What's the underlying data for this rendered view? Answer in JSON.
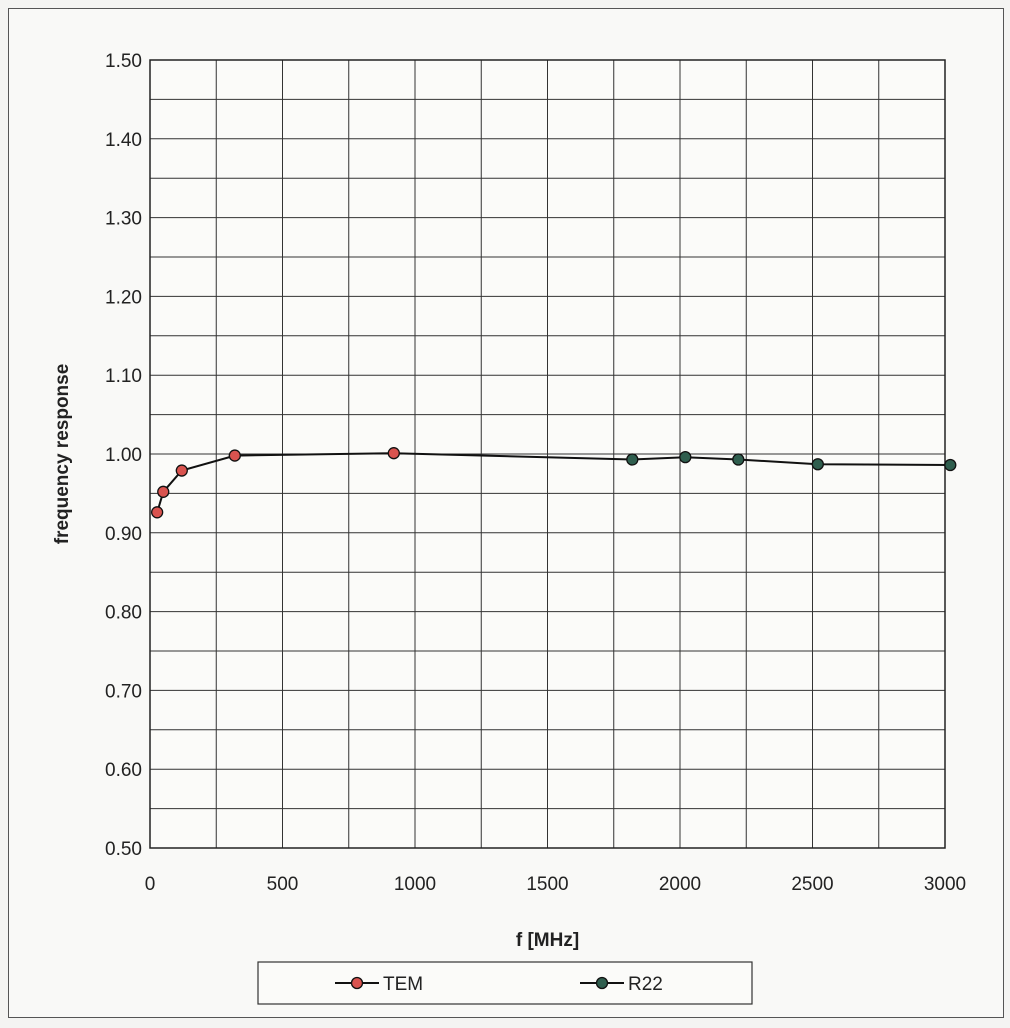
{
  "chart_data": {
    "type": "line",
    "xlabel": "f [MHz]",
    "ylabel": "frequency response",
    "xlim": [
      0,
      3000
    ],
    "ylim": [
      0.5,
      1.5
    ],
    "x_ticks": [
      0,
      500,
      1000,
      1500,
      2000,
      2500,
      3000
    ],
    "x_tick_labels": [
      "0",
      "500",
      "1000",
      "1500",
      "2000",
      "2500",
      "3000"
    ],
    "y_ticks": [
      0.5,
      0.6,
      0.7,
      0.8,
      0.9,
      1.0,
      1.1,
      1.2,
      1.3,
      1.4,
      1.5
    ],
    "y_tick_labels": [
      "0.50",
      "0.60",
      "0.70",
      "0.80",
      "0.90",
      "1.00",
      "1.10",
      "1.20",
      "1.30",
      "1.40",
      "1.50"
    ],
    "grid": true,
    "legend_position": "bottom",
    "series": [
      {
        "name": "TEM",
        "color": "#d9534f",
        "points": [
          [
            27,
            0.926
          ],
          [
            50,
            0.952
          ],
          [
            120,
            0.979
          ],
          [
            320,
            0.998
          ],
          [
            920,
            1.001
          ]
        ]
      },
      {
        "name": "R22",
        "color": "#2f5e4e",
        "points": [
          [
            1820,
            0.993
          ],
          [
            2020,
            0.996
          ],
          [
            2220,
            0.993
          ],
          [
            2520,
            0.987
          ],
          [
            3020,
            0.986
          ]
        ]
      }
    ],
    "connecting_line": [
      [
        920,
        1.001
      ],
      [
        1820,
        0.993
      ]
    ]
  }
}
